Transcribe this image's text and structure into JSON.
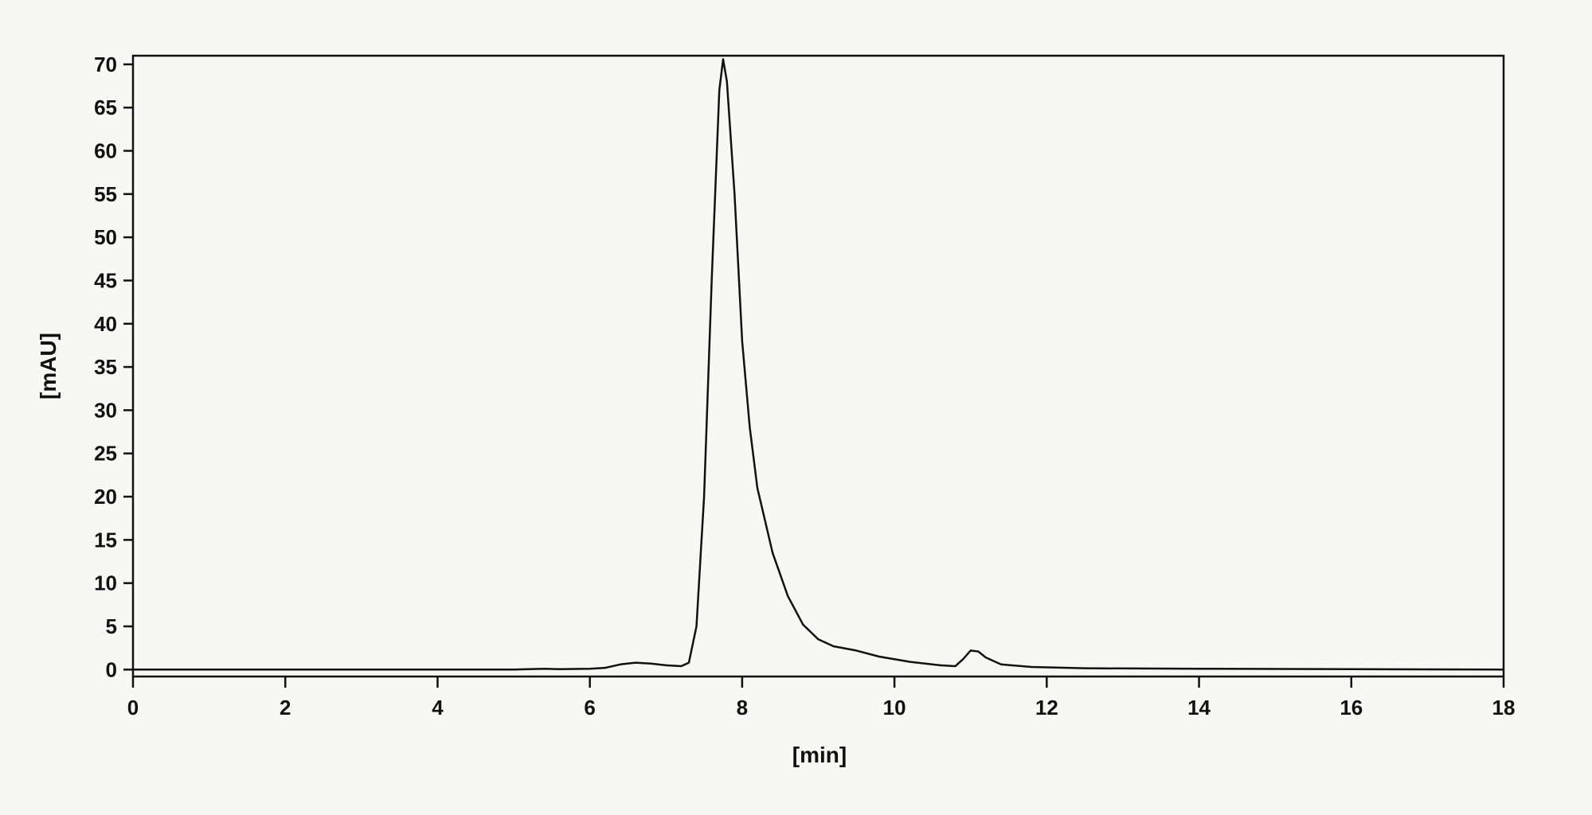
{
  "chart_data": {
    "type": "line",
    "x_label": "[min]",
    "y_label": "[mAU]",
    "xlim": [
      0,
      18
    ],
    "ylim": [
      -0.8,
      71
    ],
    "xticks": [
      0,
      2,
      4,
      6,
      8,
      10,
      12,
      14,
      16,
      18
    ],
    "yticks": [
      0,
      5,
      10,
      15,
      20,
      25,
      30,
      35,
      40,
      45,
      50,
      55,
      60,
      65,
      70
    ],
    "grid": false,
    "x": [
      0,
      2,
      4,
      5,
      5.4,
      5.6,
      6.0,
      6.2,
      6.4,
      6.6,
      6.8,
      7.0,
      7.2,
      7.3,
      7.4,
      7.5,
      7.6,
      7.7,
      7.75,
      7.8,
      7.9,
      8.0,
      8.1,
      8.2,
      8.4,
      8.6,
      8.8,
      9.0,
      9.2,
      9.5,
      9.8,
      10.2,
      10.6,
      10.8,
      10.9,
      11.0,
      11.1,
      11.2,
      11.4,
      11.8,
      12.5,
      14,
      16,
      18
    ],
    "series": [
      {
        "color": "#111111",
        "values": [
          0,
          0,
          0,
          0,
          0.1,
          0.05,
          0.1,
          0.2,
          0.6,
          0.8,
          0.7,
          0.5,
          0.4,
          0.8,
          5,
          20,
          45,
          67,
          70.6,
          68,
          55,
          38,
          28,
          21,
          13.5,
          8.5,
          5.2,
          3.5,
          2.7,
          2.2,
          1.5,
          0.9,
          0.5,
          0.4,
          1.2,
          2.2,
          2.1,
          1.4,
          0.6,
          0.3,
          0.15,
          0.1,
          0.05,
          0
        ]
      }
    ]
  }
}
